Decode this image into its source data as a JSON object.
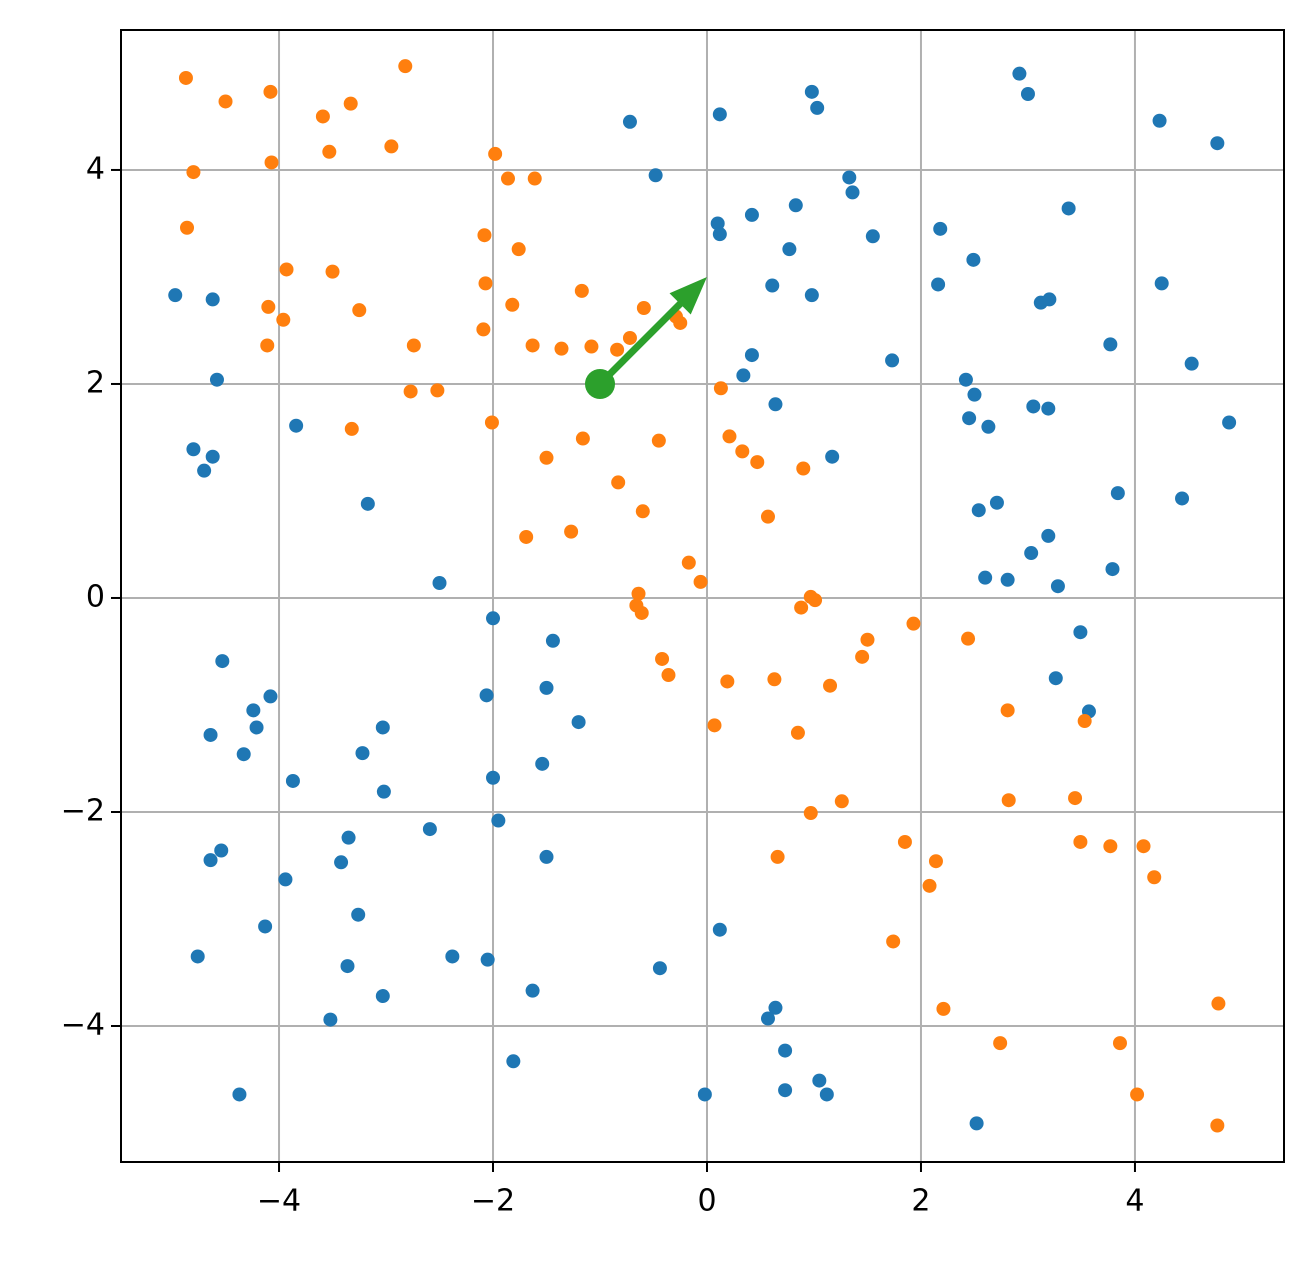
{
  "chart_data": {
    "type": "scatter",
    "xlim": [
      -5.477,
      5.393
    ],
    "ylim": [
      -5.271,
      5.308
    ],
    "xticks": [
      {
        "value": -4,
        "label": "−4"
      },
      {
        "value": -2,
        "label": "−2"
      },
      0,
      2,
      4
    ],
    "yticks": [
      {
        "value": -4,
        "label": "−4"
      },
      {
        "value": -2,
        "label": "−2"
      },
      0,
      2,
      4
    ],
    "grid": true,
    "series": [
      {
        "color": "#1f77b4",
        "x": [
          -4.97,
          -4.62,
          -4.58,
          -4.8,
          -4.62,
          -4.7,
          -3.84,
          -3.17,
          -2.5,
          -0.72,
          -0.48,
          0.12,
          0.1,
          0.12,
          0.42,
          0.98,
          1.03,
          0.83,
          1.33,
          1.36,
          0.77,
          1.55,
          0.61,
          0.98,
          0.42,
          0.34,
          0.64,
          1.73,
          1.17,
          2.18,
          2.16,
          2.49,
          2.42,
          2.5,
          2.45,
          2.63,
          2.92,
          3.0,
          3.38,
          3.12,
          3.2,
          3.77,
          3.05,
          3.19,
          4.23,
          4.77,
          4.25,
          4.53,
          4.88,
          3.84,
          4.44,
          2.54,
          2.71,
          3.19,
          3.03,
          2.6,
          2.81,
          3.28,
          3.79,
          3.49,
          3.26,
          3.57,
          -2.0,
          -1.44,
          -4.53,
          -4.08,
          -4.24,
          -4.21,
          -4.64,
          -4.33,
          -3.03,
          -3.22,
          -3.87,
          -3.02,
          -2.06,
          -1.5,
          -1.2,
          -1.54,
          -2.0,
          -1.95,
          -2.59,
          -3.35,
          -3.42,
          -4.54,
          -4.64,
          -3.94,
          -3.26,
          -4.13,
          -1.5,
          -4.76,
          -2.38,
          -3.36,
          -2.05,
          -3.03,
          -1.63,
          -3.52,
          -1.81,
          -4.37,
          -0.44,
          0.12,
          0.64,
          0.57,
          0.73,
          0.73,
          1.05,
          1.12,
          -0.02,
          2.52
        ],
        "y": [
          2.83,
          2.79,
          2.04,
          1.39,
          1.32,
          1.19,
          1.61,
          0.88,
          0.14,
          4.45,
          3.95,
          4.52,
          3.5,
          3.4,
          3.58,
          4.73,
          4.58,
          3.67,
          3.93,
          3.79,
          3.26,
          3.38,
          2.92,
          2.83,
          2.27,
          2.08,
          1.81,
          2.22,
          1.32,
          3.45,
          2.93,
          3.16,
          2.04,
          1.9,
          1.68,
          1.6,
          4.9,
          4.71,
          3.64,
          2.76,
          2.79,
          2.37,
          1.79,
          1.77,
          4.46,
          4.25,
          2.94,
          2.19,
          1.64,
          0.98,
          0.93,
          0.82,
          0.89,
          0.58,
          0.42,
          0.19,
          0.17,
          0.11,
          0.27,
          -0.32,
          -0.75,
          -1.06,
          -0.19,
          -0.4,
          -0.59,
          -0.92,
          -1.05,
          -1.21,
          -1.28,
          -1.46,
          -1.21,
          -1.45,
          -1.71,
          -1.81,
          -0.91,
          -0.84,
          -1.16,
          -1.55,
          -1.68,
          -2.08,
          -2.16,
          -2.24,
          -2.47,
          -2.36,
          -2.45,
          -2.63,
          -2.96,
          -3.07,
          -2.42,
          -3.35,
          -3.35,
          -3.44,
          -3.38,
          -3.72,
          -3.67,
          -3.94,
          -4.33,
          -4.64,
          -3.46,
          -3.1,
          -3.83,
          -3.93,
          -4.23,
          -4.6,
          -4.51,
          -4.64,
          -4.64,
          -4.91
        ]
      },
      {
        "color": "#ff7f0e",
        "x": [
          -4.87,
          -4.5,
          -4.08,
          -4.07,
          -4.8,
          -4.86,
          -3.59,
          -3.33,
          -3.53,
          -2.82,
          -2.95,
          -3.93,
          -3.5,
          -4.1,
          -3.96,
          -3.25,
          -4.11,
          -2.74,
          -2.77,
          -2.52,
          -3.32,
          -1.98,
          -1.86,
          -1.61,
          -2.08,
          -1.76,
          -2.07,
          -1.82,
          -2.09,
          -1.17,
          -1.63,
          -1.36,
          -1.08,
          -0.84,
          -0.72,
          -0.59,
          -0.25,
          -0.29,
          -2.01,
          -1.16,
          -1.5,
          -0.45,
          -0.83,
          -0.6,
          -1.27,
          -1.69,
          0.13,
          0.21,
          0.33,
          0.47,
          0.57,
          0.9,
          -0.17,
          -0.06,
          -0.64,
          -0.66,
          -0.61,
          -0.42,
          -0.36,
          0.19,
          0.07,
          0.63,
          0.97,
          1.01,
          0.88,
          1.15,
          0.85,
          1.5,
          1.45,
          1.93,
          2.44,
          0.97,
          1.26,
          0.66,
          1.85,
          2.14,
          2.08,
          1.74,
          2.21,
          2.81,
          3.53,
          2.82,
          3.44,
          3.49,
          3.77,
          4.08,
          4.18,
          2.74,
          3.86,
          4.02,
          4.78,
          4.77
        ],
        "y": [
          4.86,
          4.64,
          4.73,
          4.07,
          3.98,
          3.46,
          4.5,
          4.62,
          4.17,
          4.97,
          4.22,
          3.07,
          3.05,
          2.72,
          2.6,
          2.69,
          2.36,
          2.36,
          1.93,
          1.94,
          1.58,
          4.15,
          3.92,
          3.92,
          3.39,
          3.26,
          2.94,
          2.74,
          2.51,
          2.87,
          2.36,
          2.33,
          2.35,
          2.32,
          2.43,
          2.71,
          2.57,
          2.63,
          1.64,
          1.49,
          1.31,
          1.47,
          1.08,
          0.81,
          0.62,
          0.57,
          1.96,
          1.51,
          1.37,
          1.27,
          0.76,
          1.21,
          0.33,
          0.15,
          0.04,
          -0.07,
          -0.14,
          -0.57,
          -0.72,
          -0.78,
          -1.19,
          -0.76,
          0.01,
          -0.02,
          -0.09,
          -0.82,
          -1.26,
          -0.39,
          -0.55,
          -0.24,
          -0.38,
          -2.01,
          -1.9,
          -2.42,
          -2.28,
          -2.46,
          -2.69,
          -3.21,
          -3.84,
          -1.05,
          -1.15,
          -1.89,
          -1.87,
          -2.28,
          -2.32,
          -2.32,
          -2.61,
          -4.16,
          -4.16,
          -4.64,
          -3.79,
          -4.93
        ]
      }
    ],
    "quiver": {
      "x": -1,
      "y": 2,
      "u": 1,
      "v": 1,
      "color": "#2ca02c"
    }
  }
}
